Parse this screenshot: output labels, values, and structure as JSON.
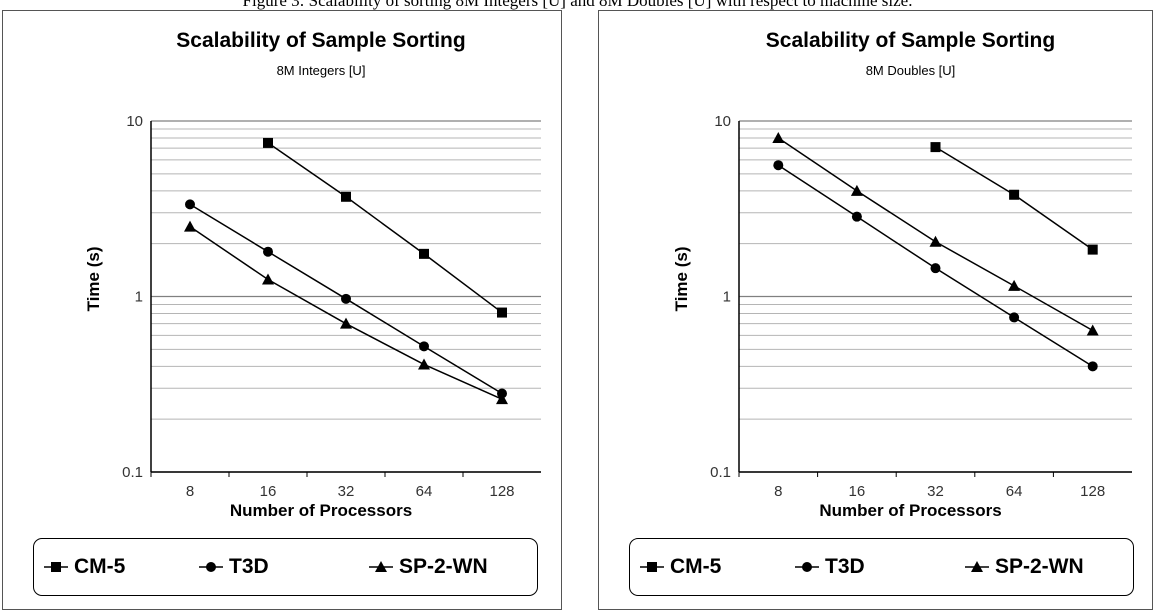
{
  "caption": "Figure 3: Scalability of sorting 8M Integers [U] and 8M Doubles [U] with respect to machine size.",
  "charts": [
    {
      "type": "line",
      "title": "Scalability of Sample Sorting",
      "subtitle": "8M Integers [U]",
      "xlabel": "Number of Processors",
      "ylabel": "Time (s)",
      "yscale": "log",
      "ylim": [
        0.1,
        10
      ],
      "y_tick_labels": [
        "10",
        "1",
        "0.1"
      ],
      "categories": [
        "8",
        "16",
        "32",
        "64",
        "128"
      ],
      "grid": true,
      "legend_position": "bottom",
      "series": [
        {
          "name": "CM-5",
          "marker": "square",
          "values": [
            null,
            7.5,
            3.7,
            1.75,
            0.81
          ]
        },
        {
          "name": "T3D",
          "marker": "circle",
          "values": [
            3.35,
            1.8,
            0.97,
            0.52,
            0.28
          ]
        },
        {
          "name": "SP-2-WN",
          "marker": "triangle",
          "values": [
            2.5,
            1.25,
            0.7,
            0.41,
            0.26
          ]
        }
      ]
    },
    {
      "type": "line",
      "title": "Scalability of Sample Sorting",
      "subtitle": "8M Doubles [U]",
      "xlabel": "Number of Processors",
      "ylabel": "Time (s)",
      "yscale": "log",
      "ylim": [
        0.1,
        10
      ],
      "y_tick_labels": [
        "10",
        "1",
        "0.1"
      ],
      "categories": [
        "8",
        "16",
        "32",
        "64",
        "128"
      ],
      "grid": true,
      "legend_position": "bottom",
      "series": [
        {
          "name": "CM-5",
          "marker": "square",
          "values": [
            null,
            null,
            7.1,
            3.8,
            1.85
          ]
        },
        {
          "name": "T3D",
          "marker": "circle",
          "values": [
            5.6,
            2.85,
            1.45,
            0.76,
            0.4
          ]
        },
        {
          "name": "SP-2-WN",
          "marker": "triangle",
          "values": [
            8.0,
            4.0,
            2.05,
            1.15,
            0.64
          ]
        }
      ]
    }
  ]
}
